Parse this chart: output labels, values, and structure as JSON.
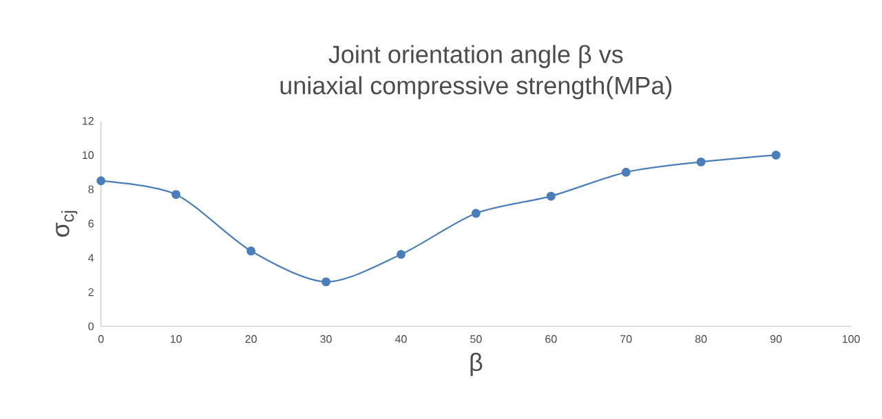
{
  "chart_data": {
    "type": "line",
    "title": "Joint orientation angle β vs\nuniaxial compressive strength(MPa)",
    "xlabel": "β",
    "ylabel": "σ$_{cj}$",
    "x": [
      0,
      10,
      20,
      30,
      40,
      50,
      60,
      70,
      80,
      90
    ],
    "values": [
      8.5,
      7.7,
      4.4,
      2.6,
      4.2,
      6.6,
      7.6,
      9.0,
      9.6,
      10.0
    ],
    "color": "#4a7ebb",
    "marker": "circle",
    "line_style": "solid",
    "xlim": [
      0,
      100
    ],
    "ylim": [
      0,
      12
    ],
    "xticks": [
      0,
      10,
      20,
      30,
      40,
      50,
      60,
      70,
      80,
      90,
      100
    ],
    "yticks": [
      0,
      2,
      4,
      6,
      8,
      10,
      12
    ]
  }
}
